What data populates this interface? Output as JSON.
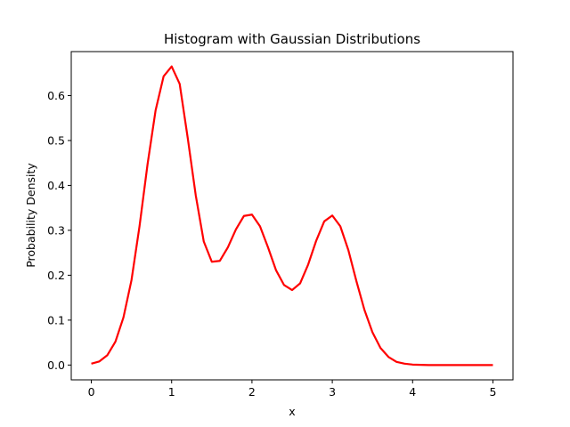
{
  "chart_data": {
    "type": "line",
    "title": "Histogram with Gaussian Distributions",
    "xlabel": "x",
    "ylabel": "Probability Density",
    "xlim": [
      -0.25,
      5.25
    ],
    "ylim": [
      -0.033,
      0.698
    ],
    "xticks": [
      0,
      1,
      2,
      3,
      4,
      5
    ],
    "yticks": [
      0.0,
      0.1,
      0.2,
      0.3,
      0.4,
      0.5,
      0.6
    ],
    "grid": false,
    "legend": "none",
    "series": [
      {
        "color": "#ff0000",
        "x": [
          0,
          0.1,
          0.2,
          0.3,
          0.4,
          0.5,
          0.6,
          0.7,
          0.8,
          0.9,
          1.0,
          1.1,
          1.2,
          1.3,
          1.4,
          1.5,
          1.6,
          1.7,
          1.8,
          1.9,
          2.0,
          2.1,
          2.2,
          2.3,
          2.4,
          2.5,
          2.6,
          2.7,
          2.8,
          2.9,
          3.0,
          3.1,
          3.2,
          3.3,
          3.4,
          3.5,
          3.6,
          3.7,
          3.8,
          3.9,
          4.0,
          4.2,
          4.4,
          4.6,
          4.8,
          5.0
        ],
        "y": [
          0.003,
          0.008,
          0.022,
          0.052,
          0.106,
          0.189,
          0.309,
          0.447,
          0.567,
          0.643,
          0.665,
          0.626,
          0.506,
          0.378,
          0.275,
          0.23,
          0.232,
          0.262,
          0.302,
          0.332,
          0.335,
          0.309,
          0.262,
          0.211,
          0.178,
          0.167,
          0.182,
          0.224,
          0.277,
          0.32,
          0.333,
          0.309,
          0.256,
          0.187,
          0.123,
          0.073,
          0.038,
          0.018,
          0.007,
          0.003,
          0.001,
          0.0,
          0.0,
          0.0,
          0.0,
          0.0
        ]
      }
    ]
  }
}
